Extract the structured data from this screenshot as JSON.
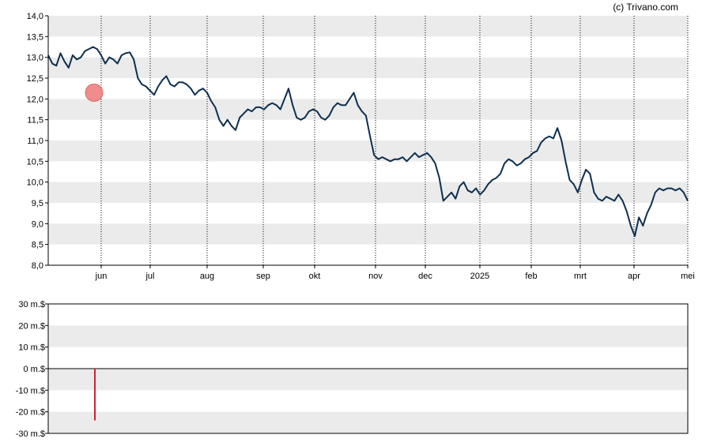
{
  "credit": "(c) Trivano.com",
  "colors": {
    "price_line": "#0e2f4f",
    "band": "#ebebeb",
    "grid": "#000000",
    "marker": "#f08080",
    "volume_bar": "#cc2233"
  },
  "chart_data": [
    {
      "type": "line",
      "ylim": [
        8.0,
        14.0
      ],
      "y_ticks": [
        "8,0",
        "8,5",
        "9,0",
        "9,5",
        "10,0",
        "10,5",
        "11,0",
        "11,5",
        "12,0",
        "12,5",
        "13,0",
        "13,5",
        "14,0"
      ],
      "x_ticks": [
        "jun",
        "jul",
        "aug",
        "sep",
        "okt",
        "nov",
        "dec",
        "2025",
        "feb",
        "mrt",
        "apr",
        "mei"
      ],
      "grid": "alternating horizontal bands, dotted vertical lines at month ticks",
      "series": [
        {
          "values": [
            13.05,
            12.85,
            12.8,
            13.1,
            12.9,
            12.75,
            13.05,
            12.95,
            13.0,
            13.15,
            13.2,
            13.25,
            13.2,
            13.05,
            12.85,
            13.0,
            12.95,
            12.85,
            13.05,
            13.1,
            13.12,
            12.95,
            12.5,
            12.35,
            12.3,
            12.2,
            12.1,
            12.3,
            12.45,
            12.55,
            12.35,
            12.3,
            12.4,
            12.4,
            12.35,
            12.25,
            12.1,
            12.2,
            12.25,
            12.15,
            11.95,
            11.8,
            11.5,
            11.35,
            11.5,
            11.35,
            11.25,
            11.55,
            11.65,
            11.75,
            11.7,
            11.8,
            11.8,
            11.75,
            11.85,
            11.9,
            11.85,
            11.75,
            12.0,
            12.25,
            11.85,
            11.55,
            11.5,
            11.55,
            11.7,
            11.75,
            11.7,
            11.55,
            11.5,
            11.6,
            11.8,
            11.9,
            11.85,
            11.85,
            12.0,
            12.15,
            11.85,
            11.7,
            11.6,
            11.1,
            10.65,
            10.55,
            10.6,
            10.55,
            10.5,
            10.55,
            10.55,
            10.6,
            10.5,
            10.6,
            10.7,
            10.6,
            10.65,
            10.7,
            10.6,
            10.45,
            10.1,
            9.55,
            9.65,
            9.75,
            9.6,
            9.9,
            10.0,
            9.8,
            9.75,
            9.85,
            9.7,
            9.8,
            9.95,
            10.05,
            10.1,
            10.2,
            10.45,
            10.55,
            10.5,
            10.4,
            10.45,
            10.55,
            10.6,
            10.7,
            10.75,
            10.95,
            11.05,
            11.1,
            11.05,
            11.3,
            11.0,
            10.5,
            10.05,
            9.95,
            9.75,
            10.05,
            10.3,
            10.2,
            9.75,
            9.6,
            9.55,
            9.65,
            9.6,
            9.55,
            9.7,
            9.55,
            9.3,
            8.95,
            8.7,
            9.15,
            8.95,
            9.25,
            9.45,
            9.75,
            9.85,
            9.8,
            9.85,
            9.85,
            9.8,
            9.85,
            9.75,
            9.55
          ]
        }
      ],
      "annotations": [
        {
          "type": "event-marker",
          "x": "end of May",
          "y": 12.15
        }
      ]
    },
    {
      "type": "bar",
      "unit": "m.$",
      "ylim": [
        -30,
        30
      ],
      "y_ticks": [
        "30 m.$",
        "20 m.$",
        "10 m.$",
        "0 m.$",
        "-10 m.$",
        "-20 m.$",
        "-30 m.$"
      ],
      "bars": [
        {
          "x": "end of May",
          "value": -24
        },
        {
          "x": "late Jul",
          "value": 0.3
        },
        {
          "x": "mid Apr",
          "value": 0.3
        }
      ]
    }
  ]
}
